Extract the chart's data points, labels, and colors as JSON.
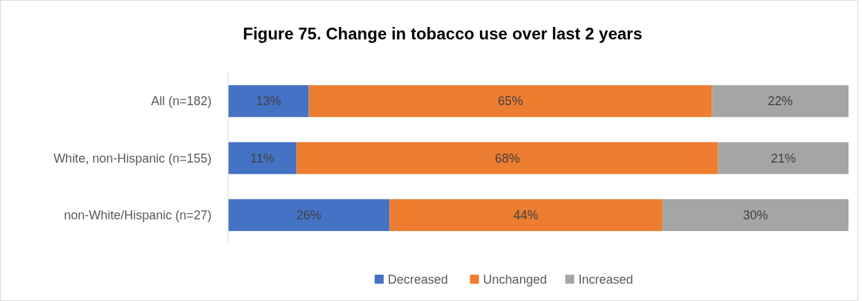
{
  "chart_data": {
    "type": "bar",
    "orientation": "horizontal",
    "stacked": true,
    "title": "Figure 75. Change in tobacco use over last 2 years",
    "categories": [
      "All (n=182)",
      "White, non-Hispanic (n=155)",
      "non-White/Hispanic (n=27)"
    ],
    "series": [
      {
        "name": "Decreased",
        "color": "#4472c4",
        "values": [
          13,
          11,
          26
        ],
        "value_labels": [
          "13%",
          "11%",
          "26%"
        ]
      },
      {
        "name": "Unchanged",
        "color": "#ed7d31",
        "values": [
          65,
          68,
          44
        ],
        "value_labels": [
          "65%",
          "68%",
          "44%"
        ]
      },
      {
        "name": "Increased",
        "color": "#a5a5a5",
        "values": [
          22,
          21,
          30
        ],
        "value_labels": [
          "22%",
          "21%",
          "30%"
        ]
      }
    ],
    "xlim": [
      0,
      100
    ],
    "tick_labels": "y",
    "legend": "bottom"
  }
}
